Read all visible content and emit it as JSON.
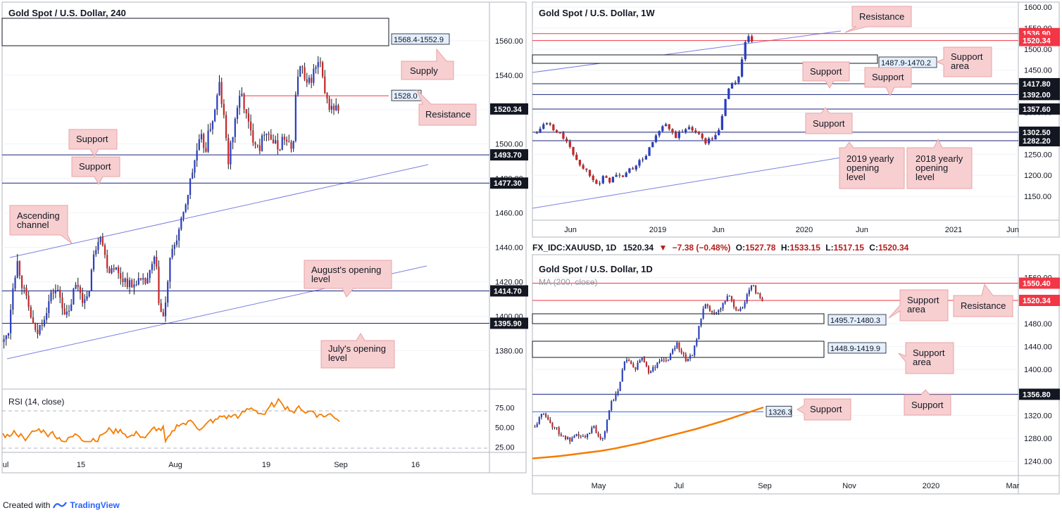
{
  "footer": {
    "created_with": "Created with",
    "brand": "TradingView",
    "logo_icon": "tradingview-logo-icon"
  },
  "chart_data": [
    {
      "id": "p240",
      "type": "candlestick",
      "title": "Gold Spot / U.S. Dollar, 240",
      "ylim": [
        1363,
        1573
      ],
      "xticks": [
        "ul",
        "15",
        "Aug",
        "19",
        "Sep",
        "16"
      ],
      "yticks": [
        "1560.00",
        "1540.00",
        "1520.00",
        "1500.00",
        "1480.00",
        "1460.00",
        "1440.00",
        "1420.00",
        "1400.00",
        "1380.00"
      ],
      "ytick_values": [
        1560,
        1540,
        1520,
        1500,
        1480,
        1460,
        1440,
        1420,
        1400,
        1380
      ],
      "price_path": [
        1385,
        1392,
        1420,
        1432,
        1418,
        1408,
        1399,
        1388,
        1395,
        1402,
        1410,
        1416,
        1413,
        1405,
        1398,
        1413,
        1419,
        1412,
        1406,
        1425,
        1440,
        1450,
        1435,
        1427,
        1430,
        1424,
        1422,
        1420,
        1416,
        1422,
        1418,
        1420,
        1425,
        1435,
        1404,
        1398,
        1428,
        1440,
        1448,
        1456,
        1470,
        1482,
        1495,
        1503,
        1497,
        1510,
        1518,
        1535,
        1515,
        1490,
        1506,
        1523,
        1528,
        1515,
        1505,
        1502,
        1498,
        1510,
        1505,
        1500,
        1497,
        1505,
        1499,
        1496,
        1540,
        1545,
        1532,
        1538,
        1544,
        1548,
        1528,
        1522,
        1521,
        1520
      ],
      "levels": [
        {
          "value": 1528.0,
          "label": "1528.0",
          "color": "#f23645",
          "style": "box"
        },
        {
          "value": 1520.34,
          "label": "1520.34",
          "color": "#131722",
          "style": "tag"
        },
        {
          "value": 1493.7,
          "label": "1493.70",
          "color": "#131722",
          "style": "tag"
        },
        {
          "value": 1477.3,
          "label": "1477.30",
          "color": "#131722",
          "style": "tag"
        },
        {
          "value": 1414.7,
          "label": "1414.70",
          "color": "#131722",
          "style": "tag"
        },
        {
          "value": 1395.9,
          "label": "1395.90",
          "color": "#131722",
          "style": "tag"
        }
      ],
      "zone": {
        "top": 1568.4,
        "bottom": 1552.9,
        "label": "1568.4-1552.9"
      },
      "annotations": [
        "Supply",
        "Resistance",
        "Support",
        "Support",
        "Ascending channel",
        "August's opening level",
        "July's opening level"
      ],
      "rsi": {
        "title": "RSI (14, close)",
        "ylim": [
          20,
          95
        ],
        "yticks": [
          "75.00",
          "50.00",
          "25.00"
        ],
        "ytick_values": [
          75,
          50,
          25
        ]
      }
    },
    {
      "id": "pW",
      "type": "candlestick",
      "title": "Gold Spot / U.S. Dollar, 1W",
      "ylim": [
        1100,
        1605
      ],
      "xticks": [
        "Jun",
        "2019",
        "Jun",
        "2020",
        "Jun",
        "2021",
        "Jun"
      ],
      "yticks": [
        "1600.00",
        "1550.00",
        "1500.00",
        "1450.00",
        "1400.00",
        "1350.00",
        "1300.00",
        "1250.00",
        "1200.00",
        "1150.00"
      ],
      "ytick_values": [
        1600,
        1550,
        1500,
        1450,
        1400,
        1350,
        1300,
        1250,
        1200,
        1150
      ],
      "price_path": [
        1300,
        1315,
        1325,
        1320,
        1305,
        1300,
        1295,
        1280,
        1260,
        1245,
        1230,
        1215,
        1210,
        1198,
        1185,
        1180,
        1200,
        1185,
        1195,
        1200,
        1195,
        1205,
        1212,
        1220,
        1230,
        1237,
        1250,
        1270,
        1290,
        1300,
        1320,
        1315,
        1300,
        1292,
        1300,
        1305,
        1318,
        1310,
        1300,
        1290,
        1280,
        1285,
        1290,
        1300,
        1345,
        1395,
        1420,
        1415,
        1440,
        1500,
        1530,
        1520
      ],
      "levels": [
        {
          "value": 1536.9,
          "label": "1536.90",
          "color": "#f23645",
          "style": "tag"
        },
        {
          "value": 1520.34,
          "label": "1520.34",
          "color": "#f23645",
          "style": "tag"
        },
        {
          "value": 1417.8,
          "label": "1417.80",
          "color": "#131722",
          "style": "tag"
        },
        {
          "value": 1392.0,
          "label": "1392.00",
          "color": "#131722",
          "style": "tag"
        },
        {
          "value": 1357.6,
          "label": "1357.60",
          "color": "#131722",
          "style": "tag"
        },
        {
          "value": 1302.5,
          "label": "1302.50",
          "color": "#131722",
          "style": "tag"
        },
        {
          "value": 1282.2,
          "label": "1282.20",
          "color": "#131722",
          "style": "tag"
        }
      ],
      "zone": {
        "top": 1487.9,
        "bottom": 1470.2,
        "label": "1487.9-1470.2"
      },
      "annotations": [
        "Resistance",
        "Support area",
        "Support",
        "Support",
        "Support",
        "2019 yearly opening level",
        "2018 yearly opening level"
      ]
    },
    {
      "id": "pD",
      "type": "candlestick",
      "title": "Gold Spot / U.S. Dollar, 1D",
      "subtitle": "MA (200, close)",
      "ylim": [
        1220,
        1562
      ],
      "xticks": [
        "May",
        "Jul",
        "Sep",
        "Nov",
        "2020",
        "Mar"
      ],
      "yticks": [
        "1560.00",
        "1520.00",
        "1480.00",
        "1440.00",
        "1400.00",
        "1360.00",
        "1320.00",
        "1280.00",
        "1240.00"
      ],
      "ytick_values": [
        1560,
        1520,
        1480,
        1440,
        1400,
        1360,
        1320,
        1280,
        1240
      ],
      "price_path": [
        1300,
        1310,
        1320,
        1325,
        1315,
        1305,
        1300,
        1295,
        1288,
        1282,
        1280,
        1275,
        1278,
        1283,
        1286,
        1282,
        1280,
        1290,
        1300,
        1298,
        1285,
        1280,
        1290,
        1320,
        1340,
        1345,
        1360,
        1380,
        1410,
        1420,
        1410,
        1405,
        1400,
        1415,
        1420,
        1410,
        1395,
        1400,
        1405,
        1410,
        1420,
        1415,
        1410,
        1430,
        1440,
        1445,
        1435,
        1425,
        1415,
        1420,
        1430,
        1450,
        1475,
        1500,
        1510,
        1505,
        1500,
        1495,
        1500,
        1510,
        1520,
        1530,
        1525,
        1510,
        1500,
        1505,
        1510,
        1530,
        1540,
        1545,
        1535,
        1527,
        1520
      ],
      "ma_path": [
        1245,
        1247,
        1249,
        1252,
        1255,
        1258,
        1262,
        1267,
        1272,
        1278,
        1284,
        1290,
        1296,
        1303,
        1310,
        1318,
        1326,
        1334
      ],
      "levels": [
        {
          "value": 1550.4,
          "label": "1550.40",
          "color": "#f23645",
          "style": "tag"
        },
        {
          "value": 1520.34,
          "label": "1520.34",
          "color": "#f23645",
          "style": "tag"
        },
        {
          "value": 1356.8,
          "label": "1356.80",
          "color": "#131722",
          "style": "tag"
        },
        {
          "value": 1326.3,
          "label": "1326.3",
          "color": "#2962ff",
          "style": "box"
        }
      ],
      "zones": [
        {
          "top": 1495.7,
          "bottom": 1480.3,
          "label": "1495.7-1480.3"
        },
        {
          "top": 1448.9,
          "bottom": 1419.9,
          "label": "1448.9-1419.9"
        }
      ],
      "annotations": [
        "Support area",
        "Resistance",
        "Support area",
        "Support",
        "Support"
      ]
    }
  ],
  "legend_d": {
    "symbol": "FX_IDC:XAUUSD, 1D",
    "price": "1520.34",
    "change": "−7.38 (−0.48%)",
    "ohlc": [
      {
        "k": "O:",
        "v": "1527.78"
      },
      {
        "k": "H:",
        "v": "1533.15"
      },
      {
        "k": "L:",
        "v": "1517.15"
      },
      {
        "k": "C:",
        "v": "1520.34"
      }
    ]
  }
}
